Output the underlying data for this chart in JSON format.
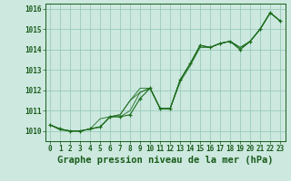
{
  "title": "Graphe pression niveau de la mer (hPa)",
  "background_color": "#cce8df",
  "grid_color": "#99ccbb",
  "line_color": "#1a6b1a",
  "marker_color": "#1a6b1a",
  "xlim": [
    -0.5,
    23.5
  ],
  "ylim": [
    1009.5,
    1016.25
  ],
  "yticks": [
    1010,
    1011,
    1012,
    1013,
    1014,
    1015,
    1016
  ],
  "xticks": [
    0,
    1,
    2,
    3,
    4,
    5,
    6,
    7,
    8,
    9,
    10,
    11,
    12,
    13,
    14,
    15,
    16,
    17,
    18,
    19,
    20,
    21,
    22,
    23
  ],
  "series": [
    [
      1010.3,
      1010.1,
      1010.0,
      1010.0,
      1010.1,
      1010.2,
      1010.7,
      1010.7,
      1010.8,
      1011.6,
      1012.1,
      1011.1,
      1011.1,
      1012.5,
      1013.3,
      1014.2,
      1014.1,
      1014.3,
      1014.4,
      1014.0,
      1014.4,
      1015.0,
      1015.8,
      1015.4
    ],
    [
      1010.3,
      1010.1,
      1010.0,
      1010.0,
      1010.1,
      1010.6,
      1010.7,
      1010.8,
      1011.5,
      1011.9,
      1012.1,
      1011.1,
      1011.1,
      1012.4,
      1013.2,
      1014.1,
      1014.1,
      1014.3,
      1014.4,
      1014.0,
      1014.4,
      1015.0,
      1015.8,
      1015.4
    ],
    [
      1010.3,
      1010.1,
      1010.0,
      1010.0,
      1010.1,
      1010.2,
      1010.7,
      1010.7,
      1011.0,
      1011.9,
      1012.1,
      1011.1,
      1011.1,
      1012.5,
      1013.3,
      1014.2,
      1014.1,
      1014.3,
      1014.4,
      1014.1,
      1014.4,
      1015.0,
      1015.8,
      1015.4
    ],
    [
      1010.3,
      1010.05,
      1010.0,
      1010.0,
      1010.1,
      1010.2,
      1010.7,
      1010.8,
      1011.5,
      1012.1,
      1012.1,
      1011.1,
      1011.1,
      1012.5,
      1013.3,
      1014.2,
      1014.1,
      1014.3,
      1014.4,
      1014.1,
      1014.4,
      1015.0,
      1015.8,
      1015.4
    ]
  ],
  "main_series_idx": 0,
  "title_fontsize": 7.5,
  "tick_fontsize": 5.5
}
